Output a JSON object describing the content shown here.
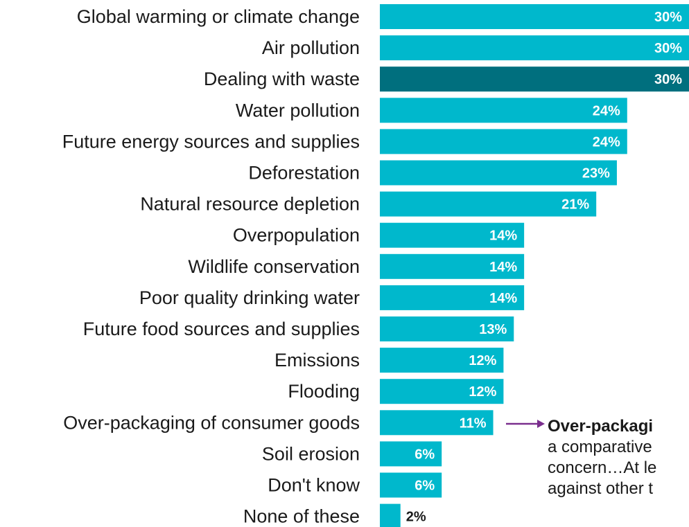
{
  "colors": {
    "bar": "#00b8cc",
    "bar_highlight": "#006f7e",
    "arrow": "#7a2e8e",
    "text": "#1a1a1a"
  },
  "chart_data": {
    "type": "bar",
    "orientation": "horizontal",
    "categories": [
      "Global warming or climate change",
      "Air pollution",
      "Dealing with waste",
      "Water pollution",
      "Future energy sources and supplies",
      "Deforestation",
      "Natural resource depletion",
      "Overpopulation",
      "Wildlife conservation",
      "Poor quality drinking water",
      "Future food sources and supplies",
      "Emissions",
      "Flooding",
      "Over-packaging of consumer goods",
      "Soil erosion",
      "Don't know",
      "None of these"
    ],
    "values": [
      30,
      30,
      30,
      24,
      24,
      23,
      21,
      14,
      14,
      14,
      13,
      12,
      12,
      11,
      6,
      6,
      2
    ],
    "value_labels": [
      "30%",
      "30%",
      "30%",
      "24%",
      "24%",
      "23%",
      "21%",
      "14%",
      "14%",
      "14%",
      "13%",
      "12%",
      "12%",
      "11%",
      "6%",
      "6%",
      "2%"
    ],
    "highlight_index": 2,
    "xlim": [
      0,
      30
    ],
    "grid": false,
    "title": "",
    "xlabel": "",
    "ylabel": ""
  },
  "callout": {
    "lines": [
      "Over-packagi",
      "a comparative",
      "concern…At le",
      "against other t"
    ]
  }
}
